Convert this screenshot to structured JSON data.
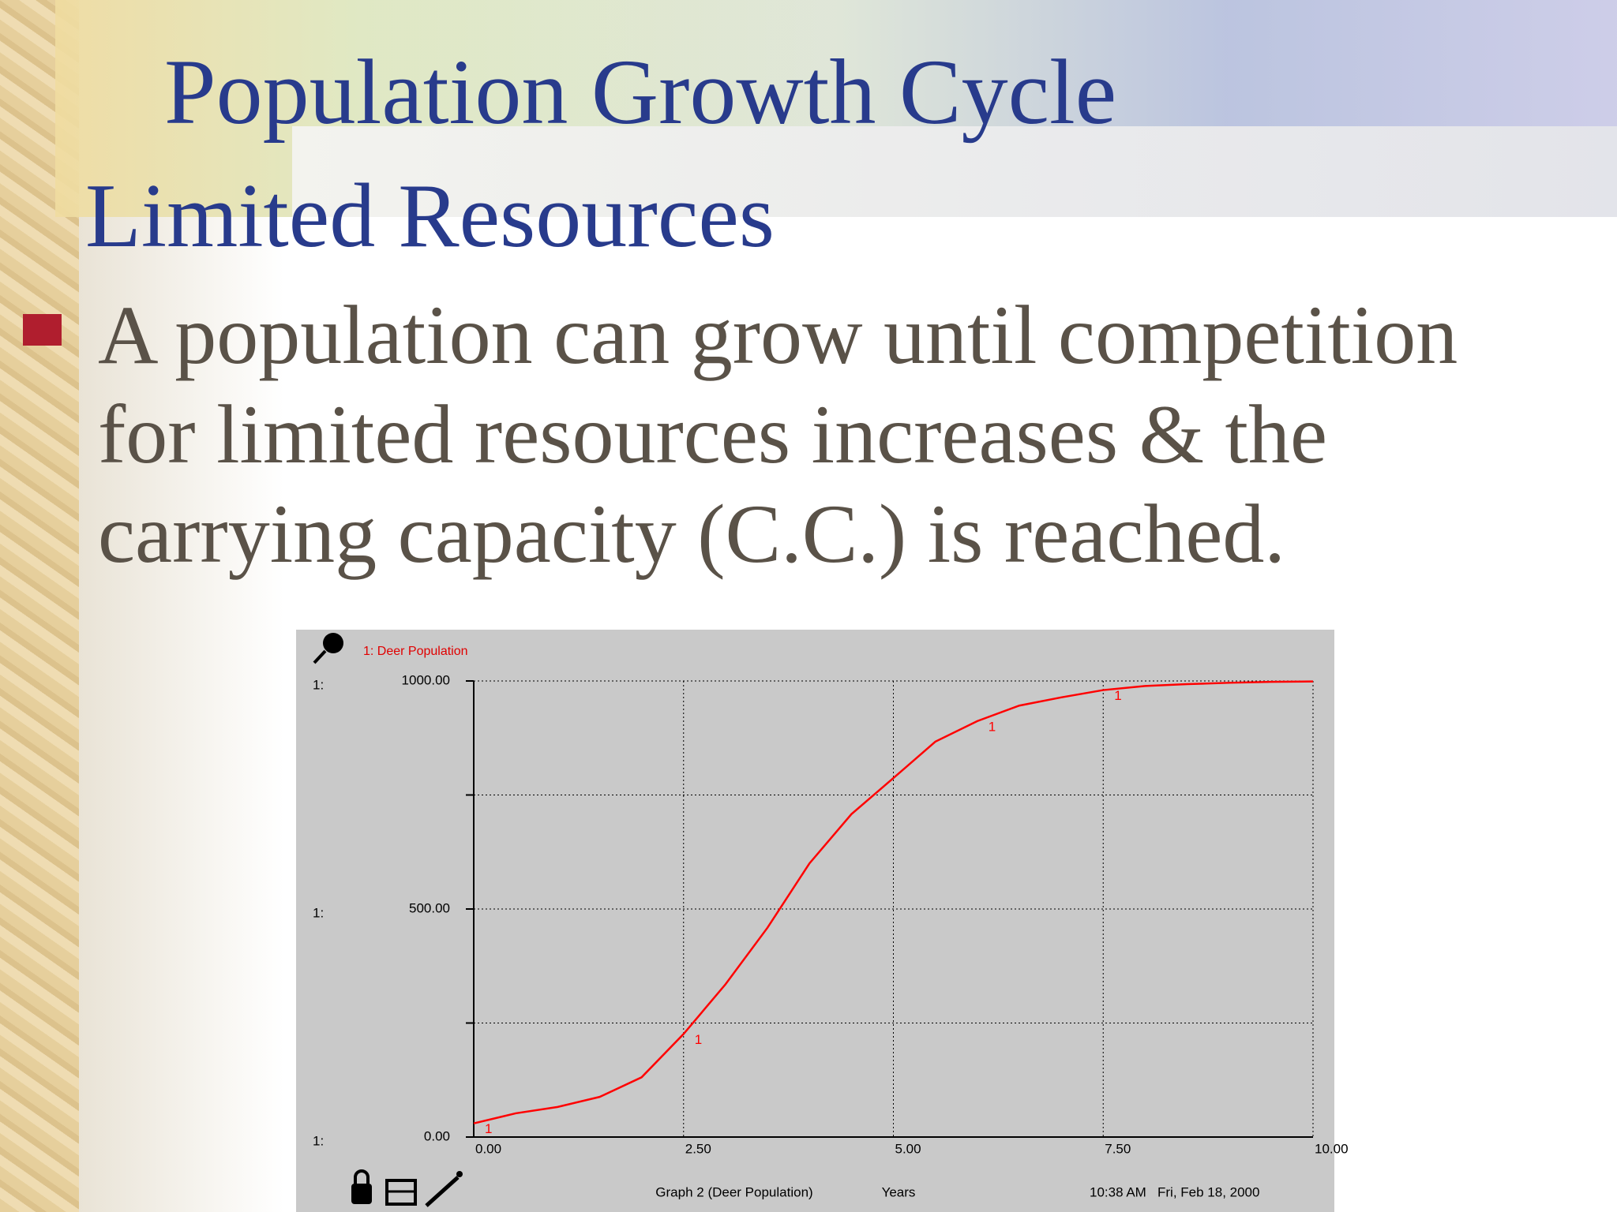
{
  "slide": {
    "title": "Population Growth Cycle",
    "subtitle": "Limited Resources",
    "bullet_lines": [
      "A population can grow until competition",
      "for limited resources increases & the",
      "carrying capacity (C.C.) is reached."
    ]
  },
  "chart_data": {
    "type": "line",
    "legend": "1: Deer Population",
    "series_marker": "1",
    "axis_prefix": "1:",
    "caption": "Graph 2 (Deer Population)",
    "x_label": "Years",
    "timestamp": "10:38 AM   Fri, Feb 18, 2000",
    "x": [
      0,
      0.5,
      1,
      1.5,
      2,
      2.5,
      3,
      3.5,
      4,
      4.5,
      5,
      5.5,
      6,
      6.5,
      7,
      7.5,
      8,
      8.5,
      9,
      9.5,
      10
    ],
    "series": [
      {
        "name": "Deer Population",
        "color": "#ff0000",
        "values": [
          30,
          52,
          66,
          88,
          131,
          226,
          335,
          459,
          600,
          708,
          787,
          867,
          912,
          946,
          964,
          980,
          989,
          993,
          996,
          998,
          999
        ]
      }
    ],
    "xlim": [
      0,
      10
    ],
    "xticks": [
      {
        "value": 0,
        "label": "0.00"
      },
      {
        "value": 2.5,
        "label": "2.50"
      },
      {
        "value": 5,
        "label": "5.00"
      },
      {
        "value": 7.5,
        "label": "7.50"
      },
      {
        "value": 10,
        "label": "10.00"
      }
    ],
    "ylim": [
      0,
      1000
    ],
    "yticks": [
      {
        "value": 0,
        "label": "0.00"
      },
      {
        "value": 500,
        "label": "500.00"
      },
      {
        "value": 1000,
        "label": "1000.00"
      }
    ],
    "minor_yticks": [
      250,
      750
    ],
    "grid": true
  }
}
